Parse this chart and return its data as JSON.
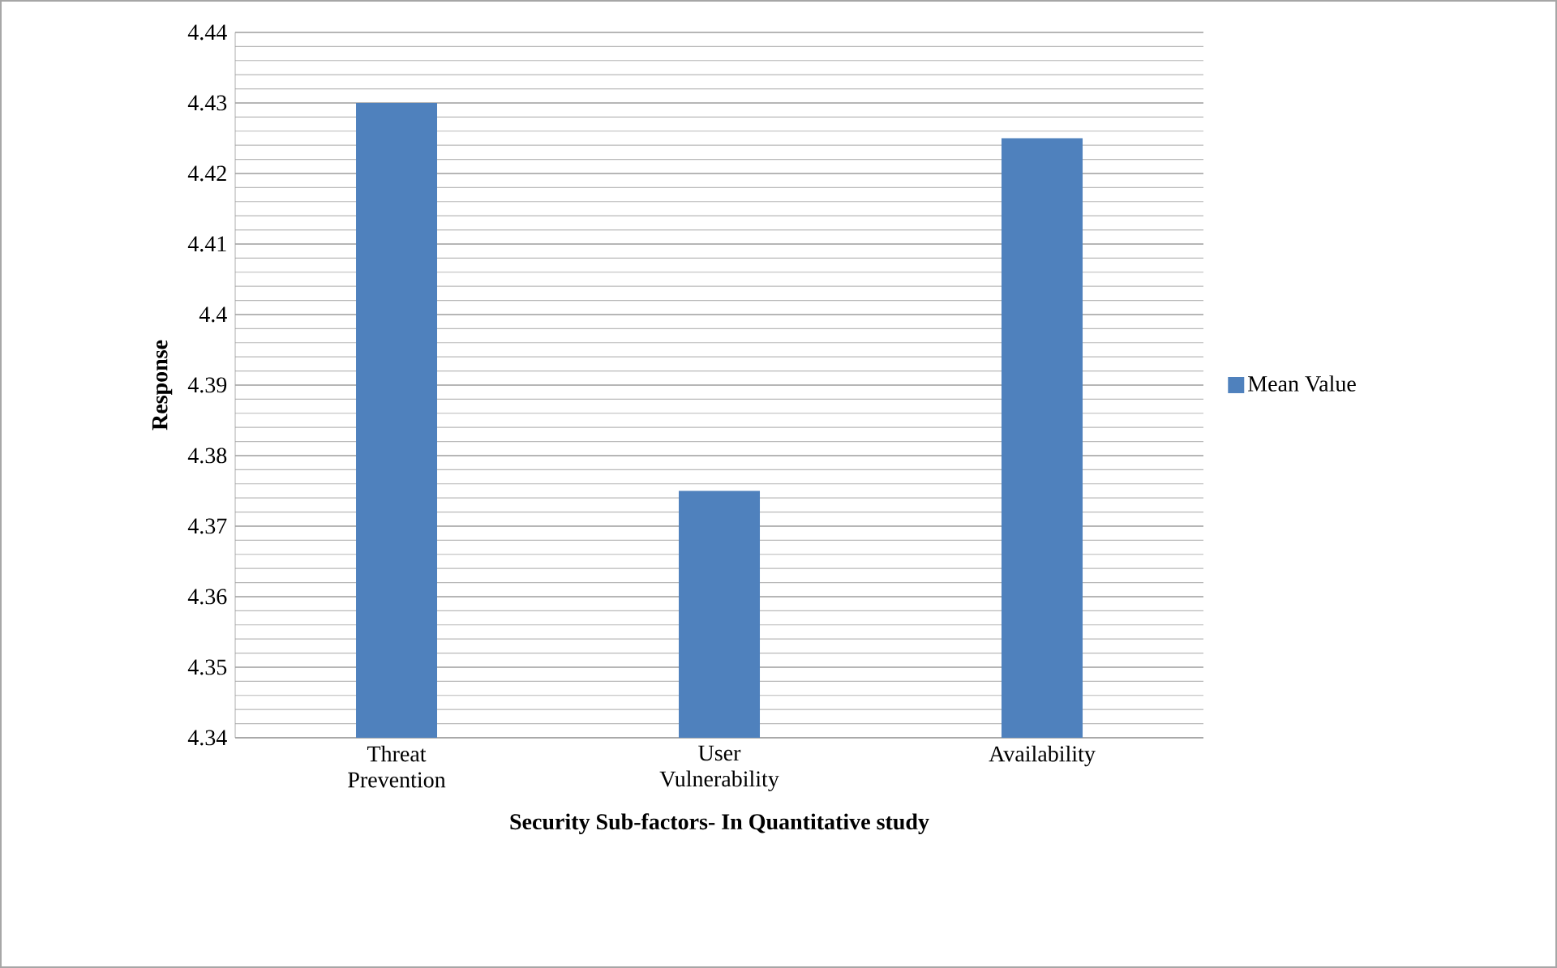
{
  "chart_data": {
    "type": "bar",
    "xlabel": "Security Sub-factors- In Quantitative study",
    "ylabel": "Response",
    "categories": [
      "Threat Prevention",
      "User Vulnerability",
      "Availability"
    ],
    "series": [
      {
        "name": "Mean Value",
        "color": "#4f81bd",
        "values": [
          4.43,
          4.375,
          4.425
        ]
      }
    ],
    "ylim": [
      4.34,
      4.44
    ],
    "yticks": [
      4.34,
      4.35,
      4.36,
      4.37,
      4.38,
      4.39,
      4.4,
      4.41,
      4.42,
      4.43,
      4.44
    ],
    "grid": "y",
    "legend": "right"
  }
}
